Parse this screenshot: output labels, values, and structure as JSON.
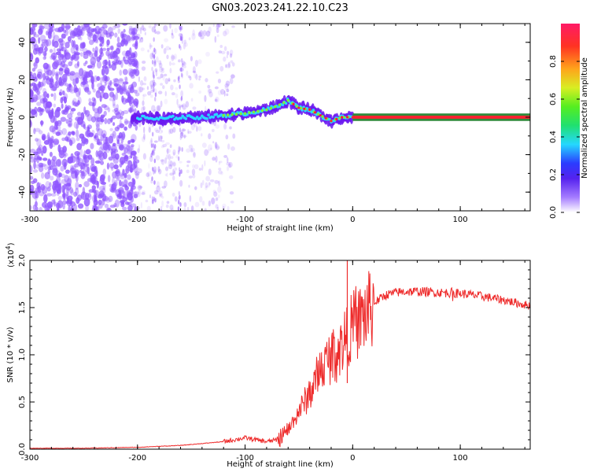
{
  "title": "GN03.2023.241.22.10.C23",
  "colors": {
    "snr_line": "#ee2b2b",
    "spectro_low": "#8f55ff",
    "spectro_band": "#2bd6ff",
    "spectro_peak": "#ff2030",
    "spectro_fill": "#2f8a3a"
  },
  "chart_data": [
    {
      "type": "heatmap",
      "name": "spectrogram",
      "xlabel": "Height of straight line (km)",
      "ylabel": "Frequency (Hz)",
      "xlim": [
        -300,
        165
      ],
      "ylim": [
        -50,
        50
      ],
      "xticks": [
        -300,
        -200,
        -100,
        0,
        100
      ],
      "xtick_labels": [
        "-300",
        "-200",
        "-100",
        "0",
        "100"
      ],
      "yticks": [
        -40,
        -20,
        0,
        20,
        40
      ],
      "ytick_labels": [
        "-40",
        "-20",
        "0",
        "20",
        "40"
      ],
      "ridge": {
        "x": [
          -200,
          -180,
          -160,
          -140,
          -120,
          -100,
          -90,
          -80,
          -70,
          -60,
          -55,
          -50,
          -40,
          -30,
          -20,
          -10,
          0,
          165
        ],
        "y": [
          0,
          -1,
          0,
          0,
          1,
          2,
          3,
          4,
          6,
          9,
          7,
          5,
          4,
          1,
          -2,
          0,
          0,
          0
        ]
      },
      "colorbar": {
        "label": "Normalized spectral amplitude",
        "range": [
          0.0,
          1.0
        ],
        "ticks": [
          0.0,
          0.2,
          0.4,
          0.6,
          0.8
        ],
        "tick_labels": [
          "0.0",
          "0.2",
          "0.4",
          "0.6",
          "0.8"
        ]
      },
      "grid": false
    },
    {
      "type": "line",
      "name": "snr",
      "xlabel": "Height of straight line (km)",
      "ylabel": "SNR (10 * v/v)",
      "yscale_label": "(x10",
      "yscale_exp": "4",
      "yscale_close": ")",
      "xlim": [
        -300,
        165
      ],
      "ylim": [
        0.0,
        2.0
      ],
      "xticks": [
        -300,
        -200,
        -100,
        0,
        100
      ],
      "xtick_labels": [
        "-300",
        "-200",
        "-100",
        "0",
        "100"
      ],
      "yticks": [
        0.0,
        0.5,
        1.0,
        1.5,
        2.0
      ],
      "ytick_labels": [
        "0.0",
        "0.5",
        "1.0",
        "1.5",
        "2.0"
      ],
      "x": [
        -300,
        -250,
        -200,
        -180,
        -160,
        -140,
        -120,
        -110,
        -100,
        -90,
        -80,
        -70,
        -60,
        -50,
        -45,
        -40,
        -35,
        -30,
        -25,
        -20,
        -15,
        -10,
        -5,
        0,
        10,
        20,
        30,
        40,
        50,
        60,
        80,
        100,
        120,
        140,
        160,
        165
      ],
      "y": [
        0.01,
        0.01,
        0.02,
        0.03,
        0.04,
        0.06,
        0.08,
        0.1,
        0.12,
        0.1,
        0.08,
        0.1,
        0.2,
        0.4,
        0.5,
        0.6,
        0.7,
        0.85,
        0.9,
        1.0,
        1.05,
        1.1,
        1.2,
        1.3,
        1.4,
        1.55,
        1.63,
        1.66,
        1.67,
        1.67,
        1.66,
        1.65,
        1.62,
        1.58,
        1.53,
        1.52
      ],
      "spike": {
        "x": -5,
        "y": 2.0
      },
      "grid": false
    }
  ]
}
